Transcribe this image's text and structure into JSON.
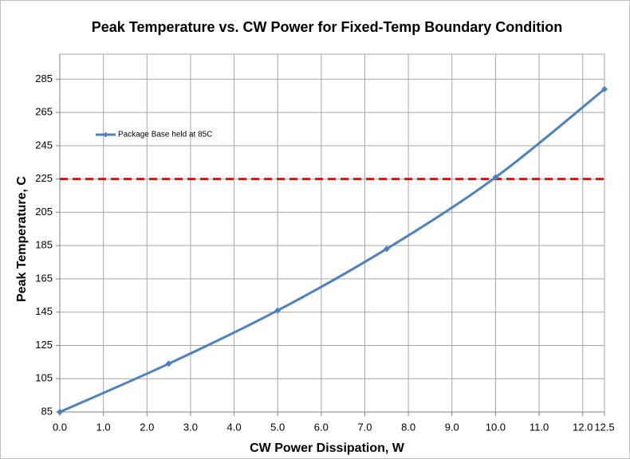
{
  "chart_data": {
    "type": "line",
    "title": "Peak Temperature vs. CW Power for Fixed-Temp Boundary Condition",
    "x_label": "CW Power Dissipation, W",
    "y_label": "Peak Temperature, C",
    "x": [
      0,
      2.5,
      5,
      7.5,
      10,
      12.5
    ],
    "series": [
      {
        "name": "Package Base held at 85C",
        "color": "#4f81bd",
        "values": [
          85,
          114,
          146,
          183,
          226,
          279
        ]
      }
    ],
    "reference_line": {
      "value": 225,
      "color": "#ff0000"
    },
    "xlim": [
      0,
      12.5
    ],
    "xticks": [
      {
        "value": 0,
        "label": "0.0"
      },
      {
        "value": 1,
        "label": "1.0"
      },
      {
        "value": 2,
        "label": "2.0"
      },
      {
        "value": 3,
        "label": "3.0"
      },
      {
        "value": 4,
        "label": "4.0"
      },
      {
        "value": 5,
        "label": "5.0"
      },
      {
        "value": 6,
        "label": "6.0"
      },
      {
        "value": 7,
        "label": "7.0"
      },
      {
        "value": 8,
        "label": "8.0"
      },
      {
        "value": 9,
        "label": "9.0"
      },
      {
        "value": 10,
        "label": "10.0"
      },
      {
        "value": 11,
        "label": "11.0"
      },
      {
        "value": 12,
        "label": "12.0"
      },
      {
        "value": 12.5,
        "label": "12.5"
      }
    ],
    "ylim": [
      85,
      300
    ],
    "yticks": [
      85,
      105,
      125,
      145,
      165,
      185,
      205,
      225,
      245,
      265,
      285
    ],
    "grid": true,
    "legend": "upper left"
  }
}
